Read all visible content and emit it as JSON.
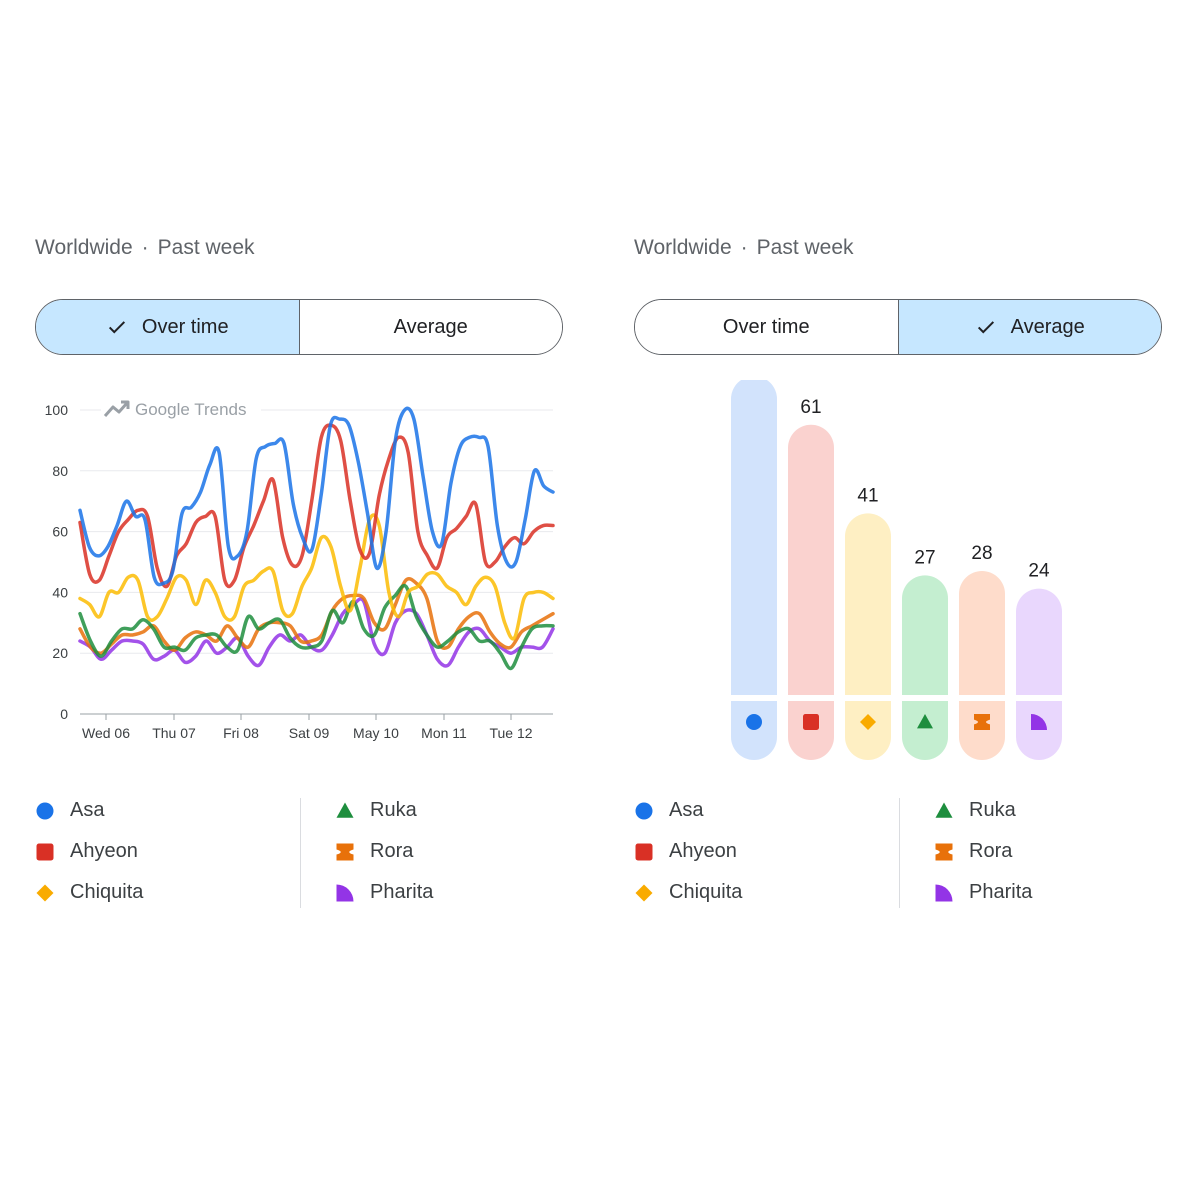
{
  "colors": {
    "asa": "#1a73e8",
    "ahyeon": "#d93025",
    "chiquita": "#f9ab00",
    "ruka": "#1e8e3e",
    "rora": "#e8710a",
    "pharita": "#9334e6"
  },
  "left": {
    "region": "Worldwide",
    "period": "Past week",
    "toggle": {
      "over_time": "Over time",
      "average": "Average",
      "active": "over_time"
    },
    "watermark": "Google Trends"
  },
  "right": {
    "region": "Worldwide",
    "period": "Past week",
    "toggle": {
      "over_time": "Over time",
      "average": "Average",
      "active": "average"
    }
  },
  "legend": [
    {
      "name": "Asa",
      "icon": "circle-icon",
      "color": "#1a73e8"
    },
    {
      "name": "Ahyeon",
      "icon": "square-icon",
      "color": "#d93025"
    },
    {
      "name": "Chiquita",
      "icon": "diamond-icon",
      "color": "#f9ab00"
    },
    {
      "name": "Ruka",
      "icon": "triangle-icon",
      "color": "#1e8e3e"
    },
    {
      "name": "Rora",
      "icon": "bowtie-icon",
      "color": "#e8710a"
    },
    {
      "name": "Pharita",
      "icon": "quarter-circle-icon",
      "color": "#9334e6"
    }
  ],
  "chart_data": [
    {
      "type": "line",
      "x_ticks": [
        "Wed 06",
        "Thu 07",
        "Fri 08",
        "Sat 09",
        "May 10",
        "Mon 11",
        "Tue 12"
      ],
      "ylim": [
        0,
        100
      ],
      "y_ticks": [
        0,
        20,
        40,
        60,
        80,
        100
      ],
      "grid": true,
      "series": [
        {
          "name": "Asa",
          "color": "#1a73e8",
          "values": [
            67,
            55,
            52,
            55,
            62,
            70,
            65,
            64,
            45,
            43,
            47,
            66,
            68,
            73,
            82,
            86,
            55,
            52,
            60,
            84,
            88,
            89,
            89,
            69,
            58,
            54,
            72,
            95,
            97,
            95,
            83,
            66,
            48,
            60,
            90,
            100,
            97,
            78,
            60,
            56,
            76,
            88,
            91,
            91,
            88,
            62,
            50,
            50,
            64,
            80,
            75,
            73
          ]
        },
        {
          "name": "Ahyeon",
          "color": "#d93025",
          "values": [
            63,
            46,
            44,
            52,
            60,
            64,
            67,
            65,
            48,
            42,
            52,
            56,
            63,
            65,
            65,
            44,
            44,
            55,
            62,
            70,
            77,
            58,
            49,
            52,
            70,
            91,
            95,
            90,
            70,
            54,
            53,
            72,
            84,
            91,
            86,
            60,
            52,
            48,
            58,
            61,
            65,
            69,
            50,
            50,
            55,
            58,
            56,
            60,
            62,
            62
          ]
        },
        {
          "name": "Chiquita",
          "color": "#fbbc04",
          "values": [
            38,
            36,
            32,
            40,
            40,
            45,
            44,
            32,
            32,
            38,
            45,
            44,
            36,
            44,
            40,
            32,
            32,
            42,
            44,
            47,
            47,
            34,
            33,
            42,
            48,
            58,
            55,
            42,
            34,
            48,
            64,
            62,
            40,
            32,
            40,
            42,
            46,
            46,
            42,
            40,
            36,
            42,
            45,
            42,
            30,
            25,
            38,
            40,
            40,
            38
          ]
        },
        {
          "name": "Ruka",
          "color": "#1e8e3e",
          "values": [
            33,
            24,
            19,
            24,
            28,
            28,
            31,
            28,
            22,
            22,
            21,
            25,
            26,
            26,
            22,
            21,
            32,
            28,
            30,
            31,
            25,
            22,
            22,
            24,
            34,
            30,
            37,
            28,
            26,
            35,
            39,
            42,
            32,
            26,
            22,
            24,
            27,
            28,
            24,
            24,
            20,
            15,
            22,
            28,
            29,
            29
          ]
        },
        {
          "name": "Rora",
          "color": "#e8710a",
          "values": [
            28,
            22,
            20,
            23,
            26,
            26,
            27,
            29,
            24,
            21,
            25,
            27,
            26,
            24,
            29,
            25,
            22,
            28,
            30,
            30,
            29,
            24,
            24,
            26,
            34,
            38,
            39,
            38,
            30,
            28,
            36,
            44,
            43,
            38,
            24,
            22,
            28,
            32,
            33,
            27,
            23,
            22,
            27,
            29,
            31,
            33
          ]
        },
        {
          "name": "Pharita",
          "color": "#9334e6",
          "values": [
            24,
            22,
            18,
            21,
            24,
            24,
            23,
            18,
            19,
            21,
            17,
            19,
            24,
            20,
            22,
            25,
            19,
            16,
            22,
            26,
            24,
            26,
            22,
            21,
            26,
            33,
            36,
            37,
            23,
            20,
            30,
            34,
            33,
            26,
            18,
            16,
            22,
            27,
            28,
            24,
            22,
            20,
            22,
            22,
            22,
            28
          ]
        }
      ]
    },
    {
      "type": "bar",
      "categories": [
        "Asa",
        "Ahyeon",
        "Chiquita",
        "Ruka",
        "Rora",
        "Pharita"
      ],
      "values": [
        72,
        61,
        41,
        27,
        28,
        24
      ],
      "colors": [
        "#d2e3fc",
        "#fad2cf",
        "#feefc3",
        "#c4eed0",
        "#fedccb",
        "#e9d7fd"
      ],
      "icon_colors": [
        "#1a73e8",
        "#d93025",
        "#f9ab00",
        "#1e8e3e",
        "#e8710a",
        "#9334e6"
      ]
    }
  ]
}
